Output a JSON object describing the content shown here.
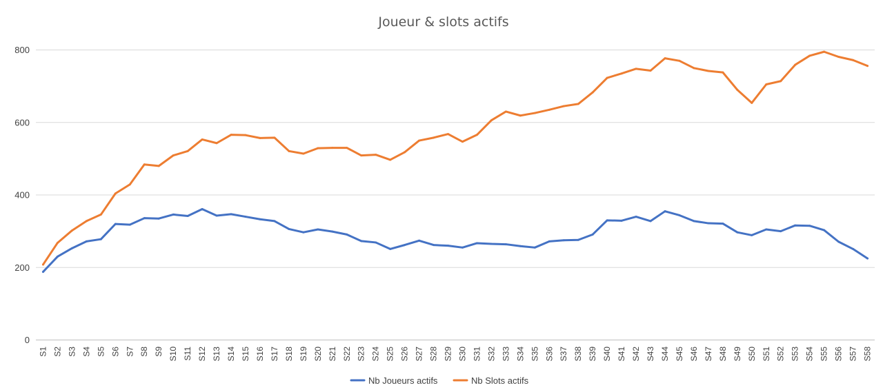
{
  "chart_data": {
    "type": "line",
    "title": "Joueur & slots actifs",
    "xlabel": "",
    "ylabel": "",
    "ylim": [
      0,
      800
    ],
    "yticks": [
      0,
      200,
      400,
      600,
      800
    ],
    "grid": true,
    "legend": "bottom",
    "categories": [
      "S1",
      "S2",
      "S3",
      "S4",
      "S5",
      "S6",
      "S7",
      "S8",
      "S9",
      "S10",
      "S11",
      "S12",
      "S13",
      "S14",
      "S15",
      "S16",
      "S17",
      "S18",
      "S19",
      "S20",
      "S21",
      "S22",
      "S23",
      "S24",
      "S25",
      "S26",
      "S27",
      "S28",
      "S29",
      "S30",
      "S31",
      "S32",
      "S33",
      "S34",
      "S35",
      "S36",
      "S37",
      "S38",
      "S39",
      "S40",
      "S41",
      "S42",
      "S43",
      "S44",
      "S45",
      "S46",
      "S47",
      "S48",
      "S49",
      "S50",
      "S51",
      "S52",
      "S53",
      "S54",
      "S55",
      "S56",
      "S57",
      "S58"
    ],
    "series": [
      {
        "name": "Nb Joueurs actifs",
        "color": "#4472C4",
        "values": [
          188,
          230,
          253,
          272,
          278,
          320,
          318,
          336,
          335,
          346,
          342,
          361,
          343,
          347,
          340,
          333,
          328,
          306,
          297,
          305,
          299,
          291,
          273,
          269,
          251,
          262,
          274,
          262,
          260,
          255,
          267,
          265,
          264,
          259,
          255,
          272,
          275,
          276,
          291,
          330,
          329,
          340,
          328,
          355,
          344,
          328,
          322,
          321,
          297,
          289,
          305,
          300,
          316,
          315,
          303,
          271,
          251,
          225
        ]
      },
      {
        "name": "Nb Slots actifs",
        "color": "#ED7D31",
        "values": [
          208,
          268,
          302,
          328,
          346,
          404,
          429,
          484,
          480,
          509,
          521,
          553,
          543,
          566,
          565,
          557,
          558,
          521,
          514,
          529,
          530,
          530,
          509,
          511,
          497,
          518,
          550,
          558,
          568,
          547,
          566,
          606,
          630,
          619,
          626,
          635,
          645,
          651,
          683,
          723,
          735,
          748,
          743,
          777,
          770,
          750,
          742,
          738,
          690,
          654,
          705,
          714,
          759,
          784,
          795,
          781,
          772,
          756
        ]
      }
    ]
  }
}
